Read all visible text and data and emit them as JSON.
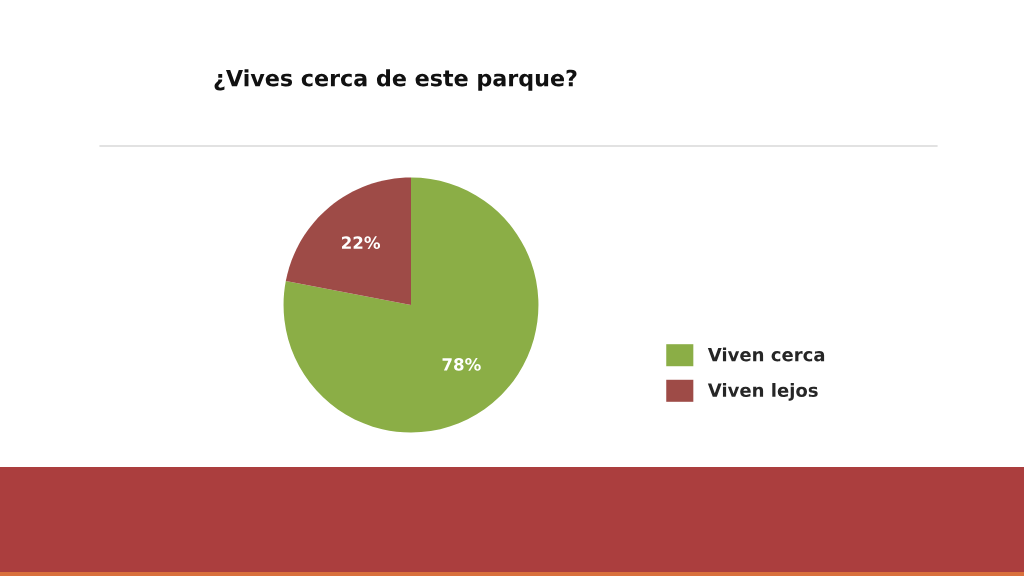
{
  "chart_data": {
    "type": "pie",
    "title": "¿Vives cerca de este parque?",
    "categories": [
      "Viven cerca",
      "Viven lejos"
    ],
    "values": [
      78,
      22
    ],
    "colors": [
      "#8bae46",
      "#9e4b47"
    ],
    "value_labels": [
      "78%",
      "22%"
    ],
    "legend": "right"
  }
}
